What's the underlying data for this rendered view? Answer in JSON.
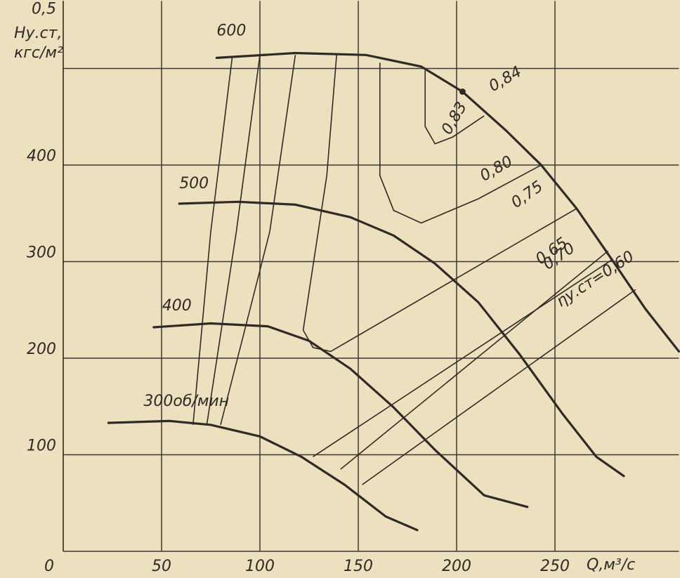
{
  "chart_data": {
    "type": "line",
    "y_label_1": "Hу.ст,",
    "y_label_2": "кгс/м²",
    "x_label": "Q,м³/с",
    "xlim": [
      0,
      313
    ],
    "ylim": [
      0,
      570
    ],
    "xticks": [
      0,
      50,
      100,
      150,
      200,
      250
    ],
    "yticks": [
      100,
      200,
      300,
      400,
      {
        "value": 500,
        "label": "0,5"
      }
    ],
    "grid": true,
    "color": "#2e2a26",
    "series": [
      {
        "name": "600",
        "kind": "speed",
        "x": [
          78,
          118,
          154,
          182,
          203,
          225,
          243,
          261,
          279,
          296,
          313
        ],
        "values": [
          511,
          516,
          514,
          502,
          476,
          436,
          400,
          355,
          302,
          251,
          207
        ]
      },
      {
        "name": "500",
        "kind": "speed",
        "x": [
          59,
          89,
          118,
          146,
          168,
          189,
          211,
          232,
          254,
          271,
          285
        ],
        "values": [
          360,
          362,
          359,
          346,
          327,
          298,
          258,
          204,
          142,
          98,
          78
        ]
      },
      {
        "name": "400",
        "kind": "speed",
        "x": [
          46,
          75,
          104,
          125,
          146,
          168,
          189,
          214,
          236
        ],
        "values": [
          232,
          236,
          233,
          218,
          189,
          149,
          105,
          58,
          46
        ]
      },
      {
        "name": "300об/мин",
        "kind": "speed",
        "x": [
          23,
          54,
          75,
          100,
          121,
          143,
          164,
          180
        ],
        "values": [
          133,
          135,
          131,
          119,
          98,
          69,
          36,
          22
        ]
      },
      {
        "name": "0,83",
        "kind": "efficiency",
        "x": [
          184,
          184,
          189,
          198,
          214
        ],
        "values": [
          498,
          440,
          422,
          429,
          451
        ]
      },
      {
        "name": "0,80",
        "kind": "efficiency",
        "x": [
          161,
          161,
          168,
          182,
          211,
          243
        ],
        "values": [
          506,
          389,
          353,
          340,
          365,
          400
        ]
      },
      {
        "name": "0,75",
        "kind": "efficiency",
        "x": [
          139,
          134,
          122,
          127,
          136,
          261
        ],
        "values": [
          514,
          389,
          229,
          211,
          207,
          355
        ]
      },
      {
        "name": "0,70",
        "kind": "efficiency",
        "x": [
          118,
          105,
          80,
          null,
          127,
          279
        ],
        "values": [
          514,
          331,
          131,
          null,
          98,
          302
        ]
      },
      {
        "name": "0,65",
        "kind": "efficiency",
        "x": [
          100,
          88,
          73,
          null,
          141,
          277
        ],
        "values": [
          514,
          331,
          131,
          null,
          85,
          311
        ]
      },
      {
        "name": "ηу.ст=0,60",
        "kind": "efficiency",
        "x": [
          86,
          75,
          66,
          null,
          152,
          291
        ],
        "values": [
          513,
          331,
          131,
          null,
          69,
          271
        ]
      },
      {
        "name": "0,84",
        "kind": "point",
        "x": [
          203
        ],
        "values": [
          476
        ]
      }
    ]
  }
}
